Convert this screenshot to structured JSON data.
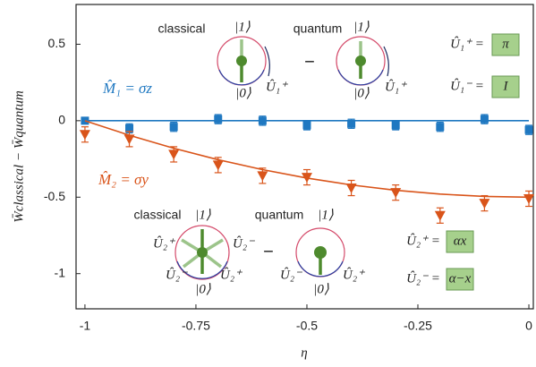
{
  "chart_data": {
    "type": "errorbar",
    "x_label": "η",
    "y_label": "W̄classical − W̄quantum",
    "xlim": [
      -1.02,
      0.01
    ],
    "ylim": [
      -1.23,
      0.76
    ],
    "xticks": [
      -1,
      -0.75,
      -0.5,
      -0.25,
      0
    ],
    "yticks": [
      0.5,
      0,
      -0.5,
      -1
    ],
    "x": [
      -1,
      -0.9,
      -0.8,
      -0.7,
      -0.6,
      -0.5,
      -0.4,
      -0.3,
      -0.2,
      -0.1,
      0
    ],
    "series": [
      {
        "name": "M̂₁ = σz",
        "color": "#1f78c1",
        "marker": "square",
        "values": [
          0,
          -0.05,
          -0.04,
          0.01,
          0,
          -0.03,
          -0.02,
          -0.03,
          -0.04,
          0.01,
          -0.06
        ],
        "errors": [
          0.02,
          0.03,
          0.03,
          0.03,
          0.03,
          0.03,
          0.03,
          0.03,
          0.03,
          0.03,
          0.03
        ],
        "fit_x": [
          -1,
          0
        ],
        "fit_y": [
          0,
          0
        ]
      },
      {
        "name": "M̂₂ = σy",
        "color": "#d9541a",
        "marker": "triangle",
        "values": [
          -0.09,
          -0.12,
          -0.22,
          -0.29,
          -0.36,
          -0.37,
          -0.44,
          -0.47,
          -0.62,
          -0.54,
          -0.51
        ],
        "errors": [
          0.05,
          0.05,
          0.05,
          0.05,
          0.05,
          0.05,
          0.05,
          0.05,
          0.05,
          0.05,
          0.05
        ],
        "fit_x": [
          -1,
          -0.9,
          -0.8,
          -0.7,
          -0.6,
          -0.5,
          -0.4,
          -0.3,
          -0.2,
          -0.1,
          0
        ],
        "fit_y": [
          0,
          -0.095,
          -0.18,
          -0.255,
          -0.32,
          -0.375,
          -0.42,
          -0.455,
          -0.48,
          -0.495,
          -0.5
        ]
      }
    ],
    "annotations": [
      "classical",
      "|1⟩",
      "|0⟩",
      "Û₁⁺",
      "quantum",
      "|1⟩",
      "|0⟩",
      "Û₁⁺",
      "−",
      "Û₁⁺ =",
      "Û₁⁻ =",
      "π",
      "I",
      "classical",
      "|1⟩",
      "quantum",
      "|1⟩",
      "Û₂⁺",
      "Û₂⁻",
      "Û₂⁻",
      "|0⟩",
      "Û₂⁺",
      "−",
      "Û₂⁻",
      "|0⟩",
      "Û₂⁺",
      "Û₂⁺ =",
      "Û₂⁻ =",
      "αx",
      "α−x"
    ]
  }
}
